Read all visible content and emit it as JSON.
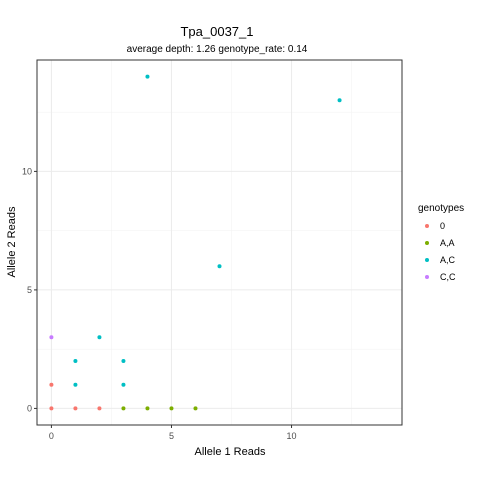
{
  "chart_data": {
    "type": "scatter",
    "title": "Tpa_0037_1",
    "subtitle": "average depth:  1.26  genotype_rate:  0.14",
    "xlabel": "Allele 1 Reads",
    "ylabel": "Allele 2 Reads",
    "xlim": [
      -0.6,
      14.6
    ],
    "ylim": [
      -0.7,
      14.7
    ],
    "x_ticks": [
      0,
      5,
      10
    ],
    "y_ticks": [
      0,
      5,
      10
    ],
    "x_minor": [
      2.5,
      7.5,
      12.5
    ],
    "y_minor": [
      2.5,
      7.5,
      12.5
    ],
    "grid": true,
    "legend": {
      "title": "genotypes",
      "position": "right"
    },
    "series": [
      {
        "name": "0",
        "color": "#F8766D",
        "points": [
          [
            0,
            0
          ],
          [
            1,
            0
          ],
          [
            2,
            0
          ],
          [
            0,
            1
          ]
        ]
      },
      {
        "name": "A,A",
        "color": "#7CAE00",
        "points": [
          [
            3,
            0
          ],
          [
            4,
            0
          ],
          [
            5,
            0
          ],
          [
            6,
            0
          ]
        ]
      },
      {
        "name": "A,C",
        "color": "#00BFC4",
        "points": [
          [
            1,
            1
          ],
          [
            3,
            1
          ],
          [
            1,
            2
          ],
          [
            3,
            2
          ],
          [
            2,
            3
          ],
          [
            7,
            6
          ],
          [
            12,
            13
          ],
          [
            4,
            14
          ]
        ]
      },
      {
        "name": "C,C",
        "color": "#C77CFF",
        "points": [
          [
            0,
            3
          ]
        ]
      }
    ]
  }
}
